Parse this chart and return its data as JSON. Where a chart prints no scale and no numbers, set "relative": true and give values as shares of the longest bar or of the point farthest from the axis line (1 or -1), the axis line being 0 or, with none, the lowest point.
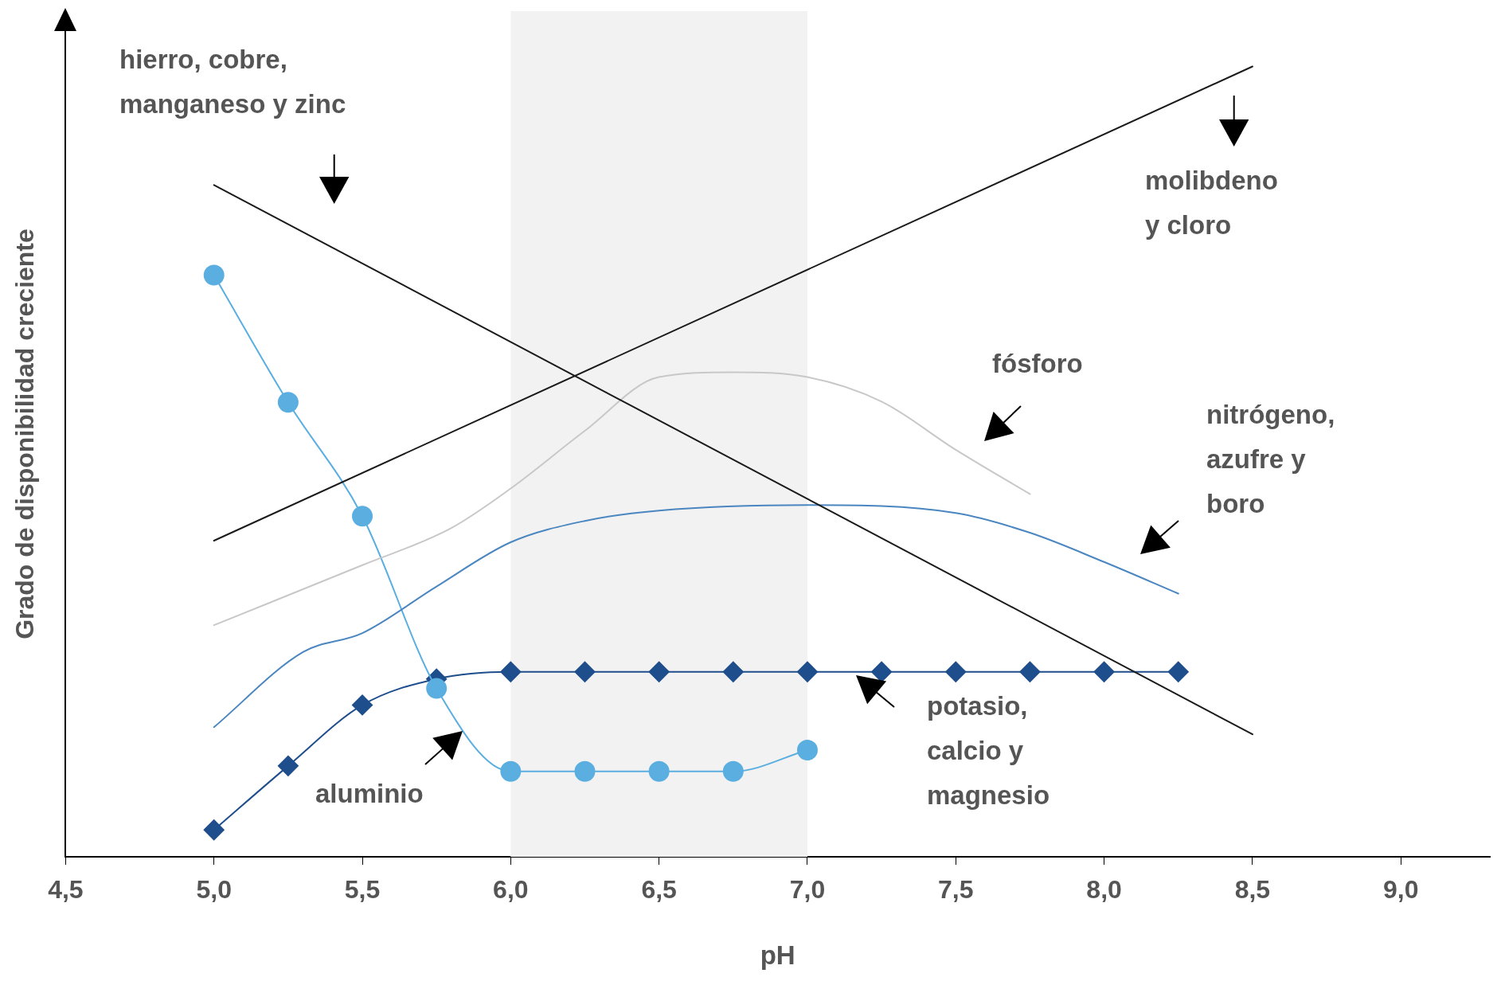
{
  "chart_data": {
    "type": "line",
    "relative": true,
    "xlabel": "pH",
    "ylabel": "Grado de disponibilidad creciente",
    "xlim": [
      4.5,
      9.3
    ],
    "xticks": [
      {
        "value": 4.5,
        "label": "4,5"
      },
      {
        "value": 5.0,
        "label": "5,0"
      },
      {
        "value": 5.5,
        "label": "5,5"
      },
      {
        "value": 6.0,
        "label": "6,0"
      },
      {
        "value": 6.5,
        "label": "6,5"
      },
      {
        "value": 7.0,
        "label": "7,0"
      },
      {
        "value": 7.5,
        "label": "7,5"
      },
      {
        "value": 8.0,
        "label": "8,0"
      },
      {
        "value": 8.5,
        "label": "8,5"
      },
      {
        "value": 9.0,
        "label": "9,0"
      }
    ],
    "legend": false,
    "grid": false,
    "bands": [
      {
        "axis": "x",
        "from": 6.0,
        "to": 7.0,
        "color": "#f2f2f2"
      }
    ],
    "series": [
      {
        "color": "#1a1a1a",
        "marker": "none",
        "x": [
          5.0,
          8.5
        ],
        "values": [
          0.85,
          0.155
        ]
      },
      {
        "color": "#1a1a1a",
        "marker": "none",
        "x": [
          5.0,
          8.5
        ],
        "values": [
          0.4,
          1.0
        ]
      },
      {
        "color": "#c8c8c8",
        "marker": "none",
        "x": [
          5.0,
          5.5,
          5.8,
          6.0,
          6.25,
          6.5,
          6.75,
          7.0,
          7.25,
          7.5,
          7.75
        ],
        "values": [
          0.293,
          0.369,
          0.416,
          0.466,
          0.539,
          0.607,
          0.613,
          0.607,
          0.576,
          0.515,
          0.459
        ]
      },
      {
        "color": "#4a86c0",
        "marker": "none",
        "x": [
          5.0,
          5.3,
          5.5,
          5.75,
          6.0,
          6.25,
          6.5,
          7.0,
          7.5,
          7.75,
          8.0,
          8.25
        ],
        "values": [
          0.164,
          0.259,
          0.283,
          0.342,
          0.398,
          0.425,
          0.438,
          0.445,
          0.435,
          0.41,
          0.373,
          0.333
        ]
      },
      {
        "color": "#5aaee0",
        "marker": "circle",
        "x": [
          5.0,
          5.25,
          5.5,
          5.75,
          6.0,
          6.25,
          6.5,
          6.75,
          7.0
        ],
        "values": [
          0.736,
          0.575,
          0.431,
          0.213,
          0.108,
          0.108,
          0.108,
          0.108,
          0.135
        ]
      },
      {
        "color": "#1f4e8c",
        "marker": "diamond",
        "x": [
          5.0,
          5.25,
          5.5,
          5.75,
          6.0,
          6.25,
          6.5,
          6.75,
          7.0,
          7.25,
          7.5,
          7.75,
          8.0,
          8.25
        ],
        "values": [
          0.034,
          0.115,
          0.192,
          0.225,
          0.234,
          0.234,
          0.234,
          0.234,
          0.234,
          0.234,
          0.234,
          0.234,
          0.234,
          0.234
        ]
      }
    ],
    "annotations": [
      "hierro, cobre, manganeso y zinc",
      "molibdeno y cloro",
      "fósforo",
      "nitrógeno, azufre y boro",
      "potasio, calcio y magnesio",
      "aluminio"
    ]
  }
}
